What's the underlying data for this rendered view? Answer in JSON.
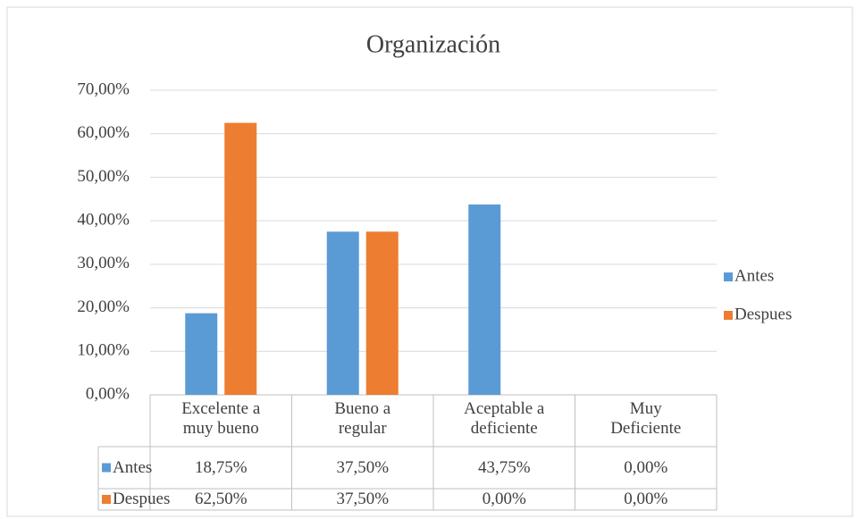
{
  "chart_data": {
    "type": "bar",
    "title": "Organización",
    "categories": [
      "Excelente a muy bueno",
      "Bueno a regular",
      "Aceptable a deficiente",
      "Muy Deficiente"
    ],
    "series": [
      {
        "name": "Antes",
        "color": "#5b9bd5",
        "values": [
          18.75,
          37.5,
          43.75,
          0
        ],
        "value_labels": [
          "18,75%",
          "37,50%",
          "43,75%",
          "0,00%"
        ]
      },
      {
        "name": "Despues",
        "color": "#ed7d31",
        "values": [
          62.5,
          37.5,
          0,
          0
        ],
        "value_labels": [
          "62,50%",
          "37,50%",
          "0,00%",
          "0,00%"
        ]
      }
    ],
    "ylim": [
      0,
      70
    ],
    "yticks": [
      {
        "value": 0,
        "label": "0,00%"
      },
      {
        "value": 10,
        "label": "10,00%"
      },
      {
        "value": 20,
        "label": "20,00%"
      },
      {
        "value": 30,
        "label": "30,00%"
      },
      {
        "value": 40,
        "label": "40,00%"
      },
      {
        "value": 50,
        "label": "50,00%"
      },
      {
        "value": 60,
        "label": "60,00%"
      },
      {
        "value": 70,
        "label": "70,00%"
      }
    ],
    "grid": true,
    "legend": "right"
  }
}
